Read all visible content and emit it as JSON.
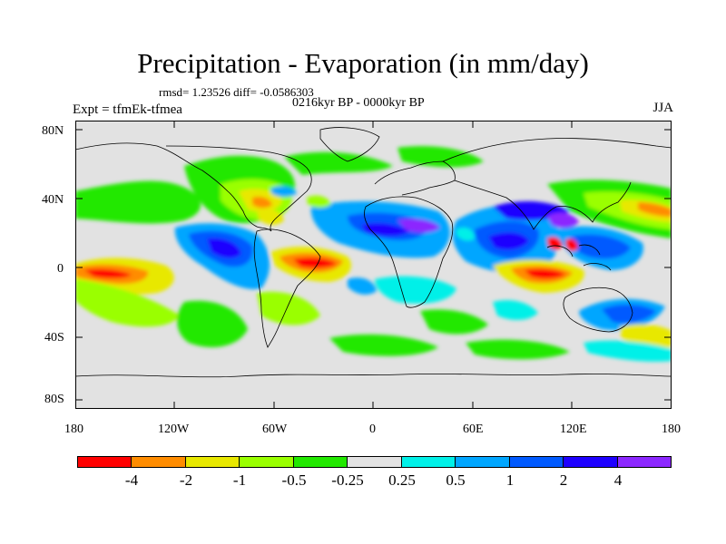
{
  "title": "Precipitation - Evaporation (in mm/day)",
  "stats": "rmsd= 1.23526 diff= -0.0586303",
  "experiment": "Expt = tfmEk-tfmea",
  "period": "0216kyr BP - 0000kyr BP",
  "season": "JJA",
  "y_ticks": [
    "80N",
    "40N",
    "0",
    "40S",
    "80S"
  ],
  "x_ticks": [
    "180",
    "120W",
    "60W",
    "0",
    "60E",
    "120E",
    "180"
  ],
  "colorbar": {
    "colors": [
      "#ff0000",
      "#ff8c00",
      "#e8e800",
      "#9aff00",
      "#22e800",
      "#e2e2e2",
      "#00f0e8",
      "#00a6ff",
      "#005aff",
      "#1e00ff",
      "#8c28ff"
    ],
    "labels": [
      "-4",
      "-2",
      "-1",
      "-0.5",
      "-0.25",
      "0.25",
      "0.5",
      "1",
      "2",
      "4"
    ]
  }
}
